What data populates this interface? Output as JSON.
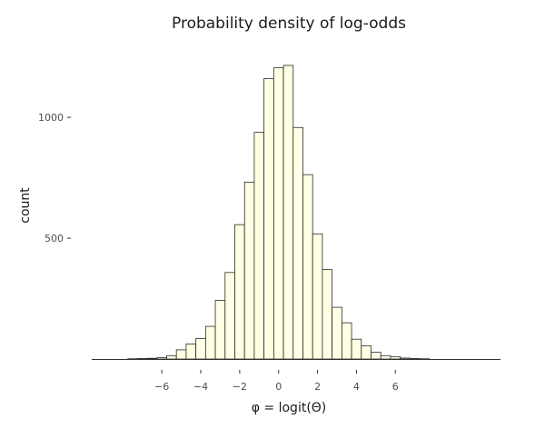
{
  "chart_data": {
    "type": "histogram",
    "title": "Probability density of log-odds",
    "xlabel": "φ = logit(Θ)",
    "ylabel": "count",
    "xlim": [
      -9.6,
      11.4
    ],
    "ylim": [
      0,
      1260
    ],
    "bin_width": 0.5,
    "xticks": [
      -6,
      -4,
      -2,
      0,
      2,
      4,
      6
    ],
    "xtick_labels": [
      "−6",
      "−4",
      "−2",
      "0",
      "2",
      "4",
      "6"
    ],
    "yticks": [
      500,
      1000
    ],
    "ytick_labels": [
      "500",
      "1000"
    ],
    "bins": [
      {
        "start": -7.75,
        "count": 1
      },
      {
        "start": -7.25,
        "count": 2
      },
      {
        "start": -6.75,
        "count": 3
      },
      {
        "start": -6.25,
        "count": 6
      },
      {
        "start": -5.75,
        "count": 14
      },
      {
        "start": -5.25,
        "count": 38
      },
      {
        "start": -4.75,
        "count": 62
      },
      {
        "start": -4.25,
        "count": 85
      },
      {
        "start": -3.75,
        "count": 135
      },
      {
        "start": -3.25,
        "count": 243
      },
      {
        "start": -2.75,
        "count": 358
      },
      {
        "start": -2.25,
        "count": 556
      },
      {
        "start": -1.75,
        "count": 732
      },
      {
        "start": -1.25,
        "count": 938
      },
      {
        "start": -0.75,
        "count": 1160
      },
      {
        "start": -0.25,
        "count": 1205
      },
      {
        "start": 0.25,
        "count": 1215
      },
      {
        "start": 0.75,
        "count": 958
      },
      {
        "start": 1.25,
        "count": 763
      },
      {
        "start": 1.75,
        "count": 518
      },
      {
        "start": 2.25,
        "count": 370
      },
      {
        "start": 2.75,
        "count": 214
      },
      {
        "start": 3.25,
        "count": 150
      },
      {
        "start": 3.75,
        "count": 82
      },
      {
        "start": 4.25,
        "count": 55
      },
      {
        "start": 4.75,
        "count": 28
      },
      {
        "start": 5.25,
        "count": 14
      },
      {
        "start": 5.75,
        "count": 10
      },
      {
        "start": 6.25,
        "count": 4
      },
      {
        "start": 6.75,
        "count": 2
      },
      {
        "start": 7.25,
        "count": 1
      }
    ],
    "colors": {
      "bar_fill": "#ffffe3",
      "bar_stroke": "#2b2b2b"
    }
  }
}
